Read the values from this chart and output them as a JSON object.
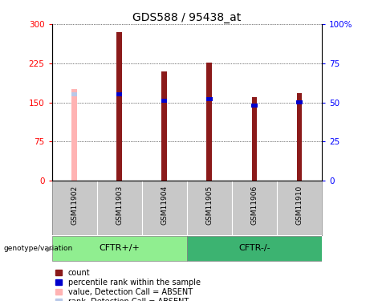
{
  "title": "GDS588 / 95438_at",
  "samples": [
    "GSM11902",
    "GSM11903",
    "GSM11904",
    "GSM11905",
    "GSM11906",
    "GSM11910"
  ],
  "count_values": [
    175,
    284,
    210,
    226,
    160,
    168
  ],
  "percentile_values": [
    55,
    55,
    51,
    52,
    48,
    50
  ],
  "absent_mask": [
    true,
    false,
    false,
    false,
    false,
    false
  ],
  "ylim_left": [
    0,
    300
  ],
  "ylim_right": [
    0,
    100
  ],
  "yticks_left": [
    0,
    75,
    150,
    225,
    300
  ],
  "ytick_labels_left": [
    "0",
    "75",
    "150",
    "225",
    "300"
  ],
  "yticks_right": [
    0,
    25,
    50,
    75,
    100
  ],
  "ytick_labels_right": [
    "0",
    "25",
    "50",
    "75",
    "100%"
  ],
  "dark_red": "#8B1A1A",
  "light_red": "#FFB3B3",
  "dark_blue": "#0000CD",
  "light_blue": "#B8C8E8",
  "bg_xlabel": "#C8C8C8",
  "bg_group_cftr_plus": "#90EE90",
  "bg_group_cftr_minus": "#3CB371",
  "bar_width": 0.12,
  "title_fontsize": 10,
  "tick_fontsize": 7.5,
  "legend_fontsize": 7
}
